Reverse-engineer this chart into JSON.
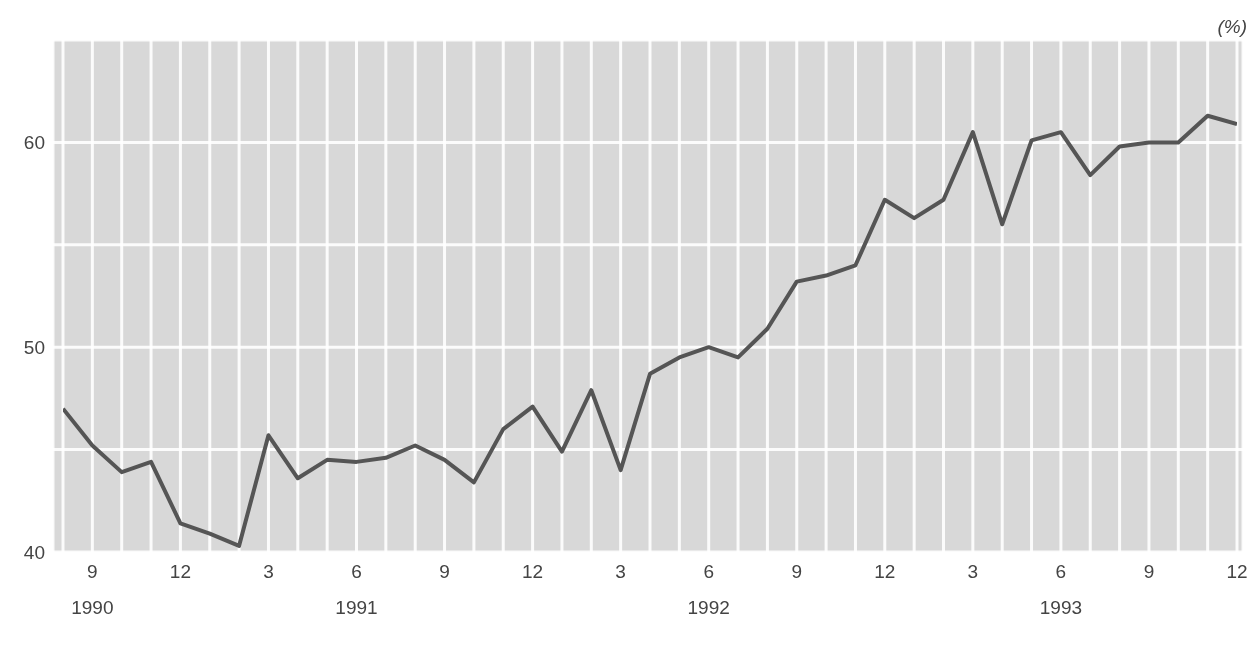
{
  "chart_data": {
    "type": "line",
    "ylabel": "(%)",
    "x": [
      "1990-08",
      "1990-09",
      "1990-10",
      "1990-11",
      "1990-12",
      "1991-01",
      "1991-02",
      "1991-03",
      "1991-04",
      "1991-05",
      "1991-06",
      "1991-07",
      "1991-08",
      "1991-09",
      "1991-10",
      "1991-11",
      "1991-12",
      "1992-01",
      "1992-02",
      "1992-03",
      "1992-04",
      "1992-05",
      "1992-06",
      "1992-07",
      "1992-08",
      "1992-09",
      "1992-10",
      "1992-11",
      "1992-12",
      "1993-01",
      "1993-02",
      "1993-03",
      "1993-04",
      "1993-05",
      "1993-06",
      "1993-07",
      "1993-08",
      "1993-09",
      "1993-10",
      "1993-11",
      "1993-12"
    ],
    "series": [
      {
        "color": "#555555",
        "values": [
          47.0,
          45.2,
          43.9,
          44.4,
          41.4,
          40.9,
          40.3,
          45.7,
          43.6,
          44.5,
          44.4,
          44.6,
          45.2,
          44.5,
          43.4,
          46.0,
          47.1,
          44.9,
          47.9,
          44.0,
          48.7,
          49.5,
          50.0,
          49.5,
          50.9,
          53.2,
          53.5,
          54.0,
          57.2,
          56.3,
          57.2,
          60.5,
          56.0,
          60.1,
          60.5,
          58.4,
          59.8,
          60.0,
          60.0,
          61.3,
          60.9
        ]
      }
    ],
    "xlim": [
      "1990-08",
      "1993-12"
    ],
    "xticks": [
      {
        "value": "1990-08",
        "label": null
      },
      {
        "value": "1990-09",
        "label": "9\n1990"
      },
      {
        "value": "1990-10",
        "label": null
      },
      {
        "value": "1990-11",
        "label": null
      },
      {
        "value": "1990-12",
        "label": "12"
      },
      {
        "value": "1991-01",
        "label": null
      },
      {
        "value": "1991-02",
        "label": null
      },
      {
        "value": "1991-03",
        "label": "3"
      },
      {
        "value": "1991-04",
        "label": null
      },
      {
        "value": "1991-05",
        "label": null
      },
      {
        "value": "1991-06",
        "label": "6\n1991"
      },
      {
        "value": "1991-07",
        "label": null
      },
      {
        "value": "1991-08",
        "label": null
      },
      {
        "value": "1991-09",
        "label": "9"
      },
      {
        "value": "1991-10",
        "label": null
      },
      {
        "value": "1991-11",
        "label": null
      },
      {
        "value": "1991-12",
        "label": "12"
      },
      {
        "value": "1992-01",
        "label": null
      },
      {
        "value": "1992-02",
        "label": null
      },
      {
        "value": "1992-03",
        "label": "3"
      },
      {
        "value": "1992-04",
        "label": null
      },
      {
        "value": "1992-05",
        "label": null
      },
      {
        "value": "1992-06",
        "label": "6\n1992"
      },
      {
        "value": "1992-07",
        "label": null
      },
      {
        "value": "1992-08",
        "label": null
      },
      {
        "value": "1992-09",
        "label": "9"
      },
      {
        "value": "1992-10",
        "label": null
      },
      {
        "value": "1992-11",
        "label": null
      },
      {
        "value": "1992-12",
        "label": "12"
      },
      {
        "value": "1993-01",
        "label": null
      },
      {
        "value": "1993-02",
        "label": null
      },
      {
        "value": "1993-03",
        "label": "3"
      },
      {
        "value": "1993-04",
        "label": null
      },
      {
        "value": "1993-05",
        "label": null
      },
      {
        "value": "1993-06",
        "label": "6\n1993"
      },
      {
        "value": "1993-07",
        "label": null
      },
      {
        "value": "1993-08",
        "label": null
      },
      {
        "value": "1993-09",
        "label": "9"
      },
      {
        "value": "1993-10",
        "label": null
      },
      {
        "value": "1993-11",
        "label": null
      },
      {
        "value": "1993-12",
        "label": "12"
      }
    ],
    "ylim": [
      40,
      65
    ],
    "yticks": [
      40,
      {
        "value": 45,
        "label": null
      },
      50,
      {
        "value": 55,
        "label": null
      },
      60
    ],
    "grid": true,
    "marker": "none",
    "line_style": "solid",
    "legend": false
  }
}
